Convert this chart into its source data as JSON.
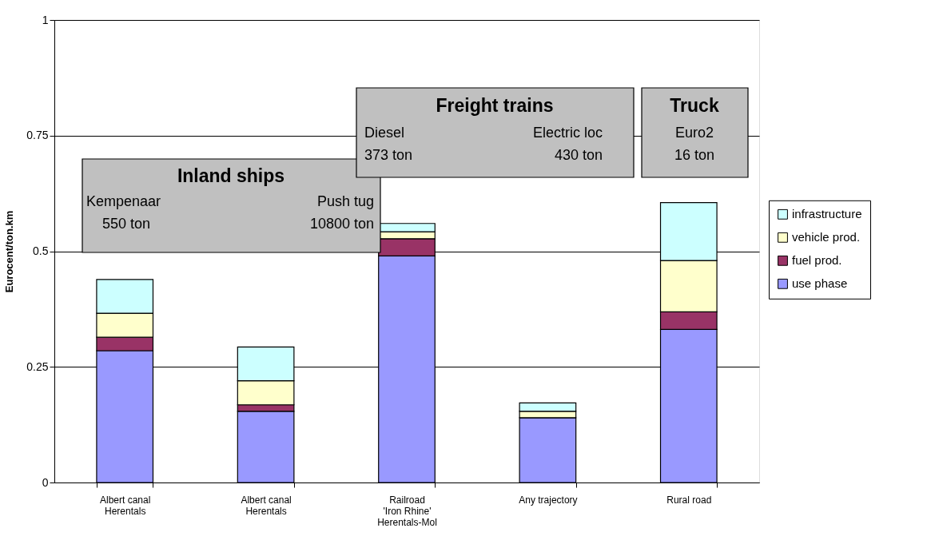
{
  "chart_data": {
    "type": "bar",
    "stacked": true,
    "ylabel": "Eurocent/ton.km",
    "categories": [
      "Albert canal\nHerentals",
      "Albert canal\nHerentals",
      "Railroad\n'Iron Rhine'\nHerentals-Mol",
      "Any trajectory",
      "Rural road"
    ],
    "series": [
      {
        "name": "use phase",
        "color": "#9999ff",
        "values": [
          0.285,
          0.154,
          0.49,
          0.14,
          0.331
        ]
      },
      {
        "name": "fuel prod.",
        "color": "#993366",
        "values": [
          0.029,
          0.014,
          0.037,
          0,
          0.038
        ]
      },
      {
        "name": "vehicle prod.",
        "color": "#ffffcc",
        "values": [
          0.052,
          0.052,
          0.015,
          0.014,
          0.111
        ]
      },
      {
        "name": "infrastructure",
        "color": "#ccffff",
        "values": [
          0.073,
          0.073,
          0.018,
          0.018,
          0.125
        ]
      }
    ],
    "ylim": [
      0,
      1
    ],
    "yticks": [
      0,
      0.25,
      0.5,
      0.75,
      1
    ],
    "grid": "y",
    "legend": "right",
    "annotations": [
      "Inland ships",
      "Kempenaar",
      "550 ton",
      "Push tug",
      "10800 ton",
      "Freight trains",
      "Diesel",
      "373 ton",
      "Electric loc",
      "430 ton",
      "Truck",
      "Euro2",
      "16 ton"
    ]
  }
}
